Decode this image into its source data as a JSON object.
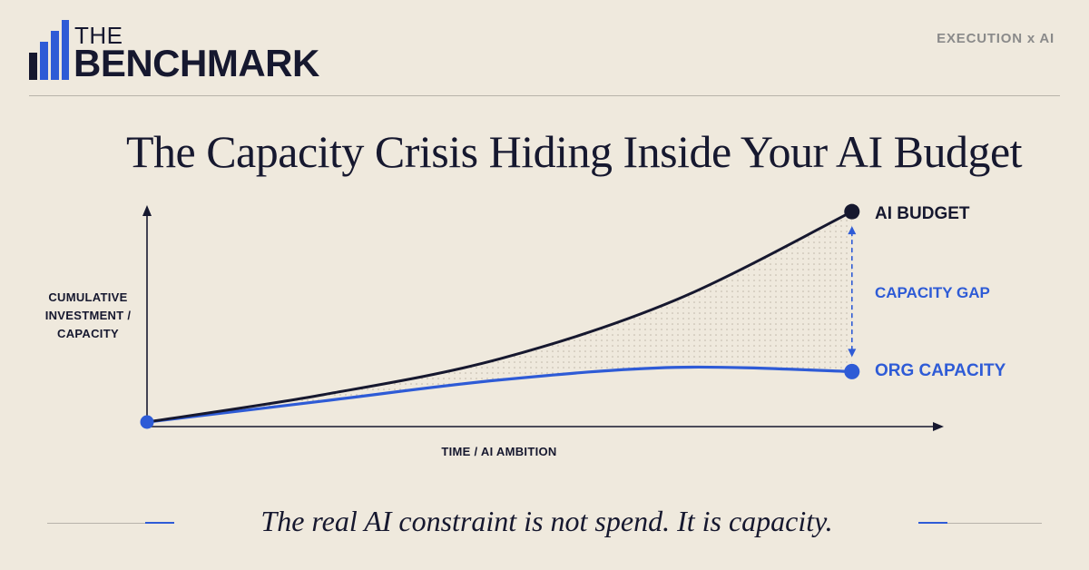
{
  "brand": {
    "line1": "THE",
    "line2": "BENCHMARK",
    "bar_color": "#2e5bd6",
    "dark_color": "#16182f"
  },
  "kicker": "EXECUTION x AI",
  "title": "The Capacity Crisis Hiding Inside Your AI Budget",
  "tagline": "The real AI constraint is not spend. It is capacity.",
  "colors": {
    "background": "#efe9dd",
    "accent": "#2e5bd6",
    "dark": "#16182f",
    "muted": "#8a8a8a"
  },
  "chart_data": {
    "type": "line",
    "title": "",
    "xlabel": "TIME / AI AMBITION",
    "ylabel": "CUMULATIVE INVESTMENT / CAPACITY",
    "ylabel_lines": [
      "CUMULATIVE",
      "INVESTMENT /",
      "CAPACITY"
    ],
    "x": [
      0,
      0.25,
      0.5,
      0.75,
      1.0
    ],
    "xlim": [
      0,
      1.12
    ],
    "ylim": [
      0,
      1.1
    ],
    "grid": false,
    "series": [
      {
        "name": "AI BUDGET",
        "color": "#16182f",
        "values": [
          0,
          0.13,
          0.3,
          0.58,
          1.0
        ]
      },
      {
        "name": "ORG CAPACITY",
        "color": "#2e5bd6",
        "values": [
          0,
          0.1,
          0.2,
          0.26,
          0.24
        ]
      }
    ],
    "annotations": [
      {
        "text": "CAPACITY GAP",
        "color": "#2e5bd6",
        "between": [
          "AI BUDGET",
          "ORG CAPACITY"
        ]
      }
    ],
    "shaded_area_between_series": true
  }
}
